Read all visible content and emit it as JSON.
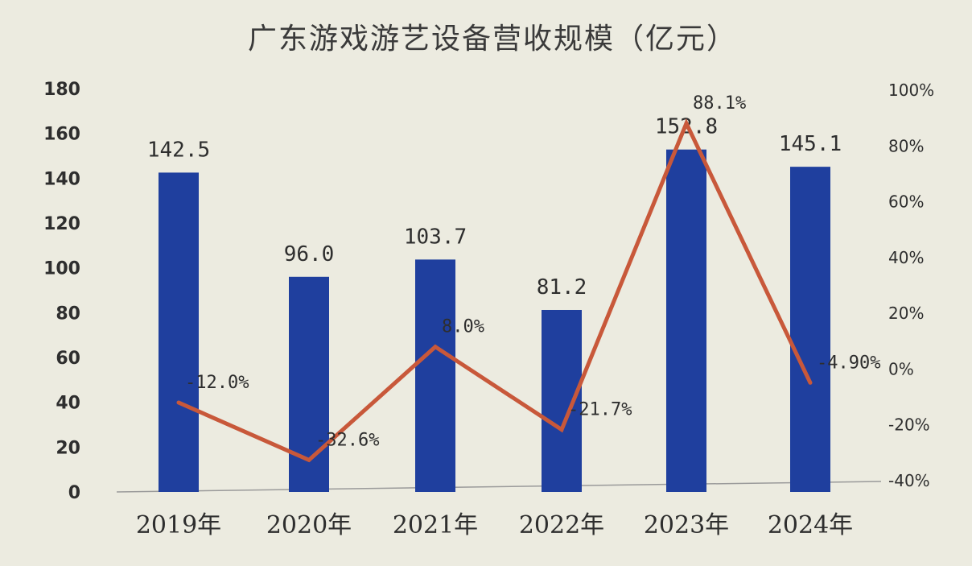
{
  "chart_data": {
    "type": "bar",
    "title": "广东游戏游艺设备营收规模（亿元）",
    "categories": [
      "2019年",
      "2020年",
      "2021年",
      "2022年",
      "2023年",
      "2024年"
    ],
    "series": [
      {
        "values": [
          142.5,
          96.0,
          103.7,
          81.2,
          152.8,
          145.1
        ],
        "value_labels": [
          "142.5",
          "96.0",
          "103.7",
          "81.2",
          "152.8",
          "145.1"
        ],
        "axis": "left",
        "color": "#1f3f9e"
      },
      {
        "type": "line",
        "values": [
          -12.0,
          -32.6,
          8.0,
          -21.7,
          88.1,
          -4.9
        ],
        "value_labels": [
          "-12.0%",
          "-32.6%",
          "8.0%",
          "-21.7%",
          "88.1%",
          "-4.90%"
        ],
        "axis": "right",
        "color": "#c8583a"
      }
    ],
    "y_left": {
      "min": 0,
      "max": 180,
      "ticks": [
        "0",
        "20",
        "40",
        "60",
        "80",
        "100",
        "120",
        "140",
        "160",
        "180"
      ]
    },
    "y_right": {
      "min": -40,
      "max": 100,
      "ticks": [
        "-40%",
        "-20%",
        "0%",
        "20%",
        "40%",
        "60%",
        "80%",
        "100%"
      ]
    },
    "grid": false,
    "legend": "none"
  }
}
